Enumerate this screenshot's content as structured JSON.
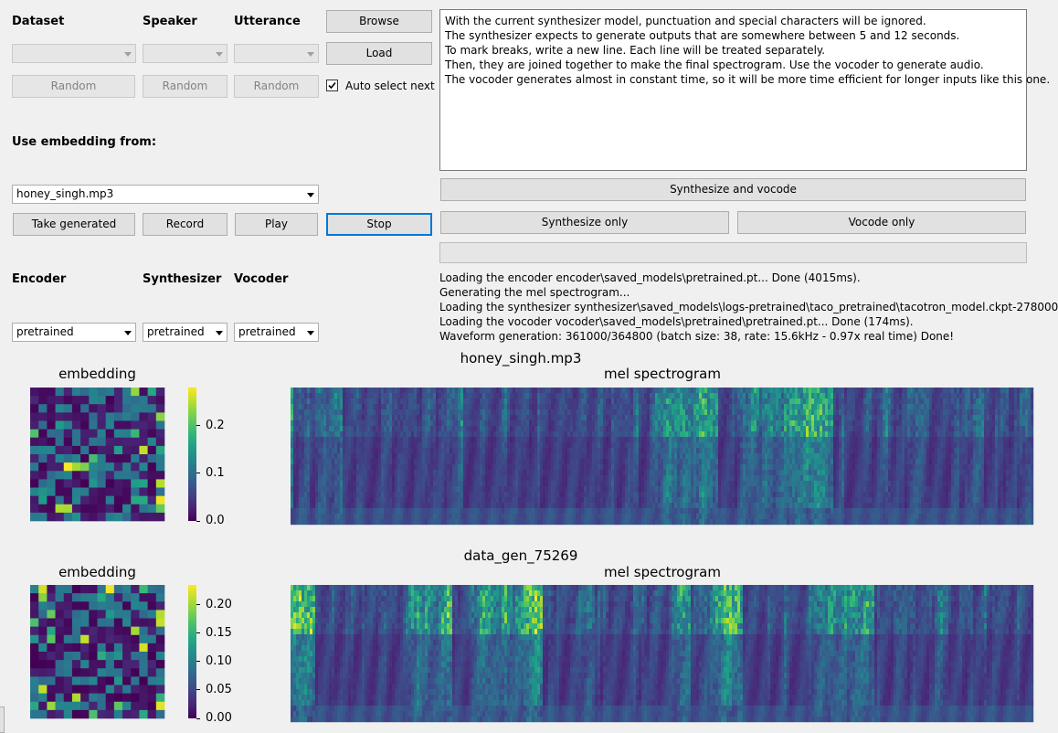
{
  "selectors": {
    "dataset_label": "Dataset",
    "speaker_label": "Speaker",
    "utterance_label": "Utterance",
    "random_label": "Random",
    "browse_label": "Browse",
    "load_label": "Load",
    "auto_select_label": "Auto select next",
    "auto_select_checked": true
  },
  "embedding_source": {
    "label": "Use embedding from:",
    "selected": "honey_singh.mp3"
  },
  "actions": {
    "take_generated": "Take generated",
    "record": "Record",
    "play": "Play",
    "stop": "Stop"
  },
  "models": {
    "encoder_label": "Encoder",
    "synthesizer_label": "Synthesizer",
    "vocoder_label": "Vocoder",
    "encoder_value": "pretrained",
    "synthesizer_value": "pretrained",
    "vocoder_value": "pretrained"
  },
  "text_input": {
    "lines": [
      "With the current synthesizer model, punctuation and special characters will be ignored.",
      "The synthesizer expects to generate outputs that are somewhere between 5 and 12 seconds.",
      "To mark breaks, write a new line. Each line will be treated separately.",
      "Then, they are joined together to make the final spectrogram. Use the vocoder to generate audio.",
      "The vocoder generates almost in constant time, so it will be more time efficient for longer inputs like this one."
    ]
  },
  "synthesis": {
    "synth_vocode_label": "Synthesize and vocode",
    "synth_only_label": "Synthesize only",
    "vocode_only_label": "Vocode only",
    "progress": 0
  },
  "log_lines": [
    "Loading the encoder encoder\\saved_models\\pretrained.pt... Done (4015ms).",
    "Generating the mel spectrogram...",
    "Loading the synthesizer synthesizer\\saved_models\\logs-pretrained\\taco_pretrained\\tacotron_model.ckpt-278000",
    "Loading the vocoder vocoder\\saved_models\\pretrained\\pretrained.pt... Done (174ms).",
    "Waveform generation: 361000/364800 (batch size: 38, rate: 15.6kHz - 0.97x real time) Done!"
  ],
  "plots": [
    {
      "name": "honey_singh.mp3",
      "embedding_title": "embedding",
      "mel_title": "mel spectrogram",
      "colorbar_ticks": [
        "0.2",
        "0.1",
        "0.0"
      ],
      "colorbar_tick_values": [
        0.2,
        0.1,
        0.0
      ],
      "colorbar_max": 0.28
    },
    {
      "name": "data_gen_75269",
      "embedding_title": "embedding",
      "mel_title": "mel spectrogram",
      "colorbar_ticks": [
        "0.20",
        "0.15",
        "0.10",
        "0.05",
        "0.00"
      ],
      "colorbar_tick_values": [
        0.2,
        0.15,
        0.1,
        0.05,
        0.0
      ],
      "colorbar_max": 0.235
    }
  ],
  "colors": {
    "viridis_dark": "#440154",
    "viridis_mid": "#21918c",
    "viridis_bright": "#fde725",
    "focus_blue": "#0078d7"
  }
}
